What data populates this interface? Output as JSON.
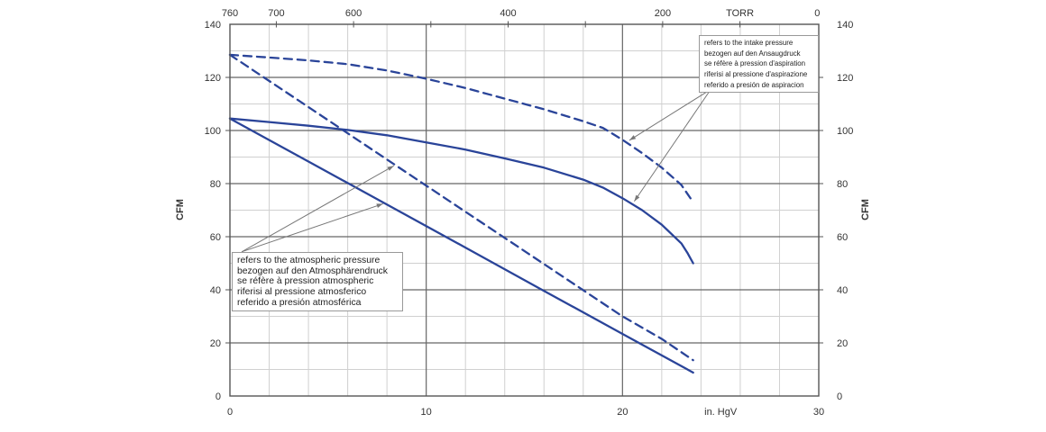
{
  "chart_data": {
    "type": "line",
    "x_axis_bottom": {
      "label": "in. HgV",
      "range": [
        0,
        30
      ],
      "labeled_ticks": [
        0,
        10,
        20,
        30
      ],
      "unit_label_at": 25
    },
    "x_axis_top": {
      "label": "TORR",
      "labeled_ticks": [
        760,
        700,
        600,
        400,
        200,
        0
      ],
      "minor_ticks": [
        500,
        300,
        100
      ],
      "conversion": "torr = 760 - 25.4 * inHgV",
      "unit_label_at_torr": 100
    },
    "y_axis": {
      "label": "CFM",
      "range": [
        0,
        140
      ],
      "labeled_ticks": [
        0,
        20,
        40,
        60,
        80,
        100,
        120,
        140
      ],
      "minor_grid_step": 10,
      "major_grid_step": 20
    },
    "x_grid": {
      "minor_step": 2,
      "major_lines": [
        10,
        20
      ]
    },
    "colors": {
      "curve": "#2a4499",
      "grid_minor": "#d0d0d0",
      "grid_major": "#666666",
      "frame": "#555555",
      "leader": "#777777",
      "text": "#333333"
    },
    "series": [
      {
        "name": "displacement-atmospheric-solid",
        "style": "solid",
        "reference": "atmospheric pressure",
        "points": [
          [
            0,
            104.5
          ],
          [
            4,
            88.3
          ],
          [
            8,
            72.1
          ],
          [
            12,
            55.9
          ],
          [
            16,
            39.6
          ],
          [
            20,
            23.4
          ],
          [
            23.6,
            8.8
          ]
        ]
      },
      {
        "name": "displacement-atmospheric-dashed",
        "style": "dashed",
        "reference": "atmospheric pressure",
        "points": [
          [
            0,
            128.5
          ],
          [
            4,
            108.8
          ],
          [
            8,
            89.1
          ],
          [
            12,
            69.4
          ],
          [
            16,
            49.7
          ],
          [
            20,
            30
          ],
          [
            22,
            21.5
          ],
          [
            23.6,
            13.5
          ]
        ]
      },
      {
        "name": "displacement-intake-solid",
        "style": "solid",
        "reference": "intake pressure",
        "points": [
          [
            0,
            104.5
          ],
          [
            2,
            103.2
          ],
          [
            4,
            101.8
          ],
          [
            6,
            100.2
          ],
          [
            8,
            98.2
          ],
          [
            10,
            95.5
          ],
          [
            12,
            92.8
          ],
          [
            14,
            89.5
          ],
          [
            16,
            86
          ],
          [
            18,
            81.5
          ],
          [
            19,
            78.5
          ],
          [
            20,
            74.5
          ],
          [
            21,
            70
          ],
          [
            22,
            64.5
          ],
          [
            23,
            57.5
          ],
          [
            23.3,
            54
          ],
          [
            23.6,
            50
          ]
        ]
      },
      {
        "name": "displacement-intake-dashed",
        "style": "dashed",
        "reference": "intake pressure",
        "points": [
          [
            0,
            128.5
          ],
          [
            2,
            127.5
          ],
          [
            4,
            126.4
          ],
          [
            6,
            125
          ],
          [
            8,
            122.6
          ],
          [
            10,
            119.5
          ],
          [
            12,
            116
          ],
          [
            14,
            112
          ],
          [
            16,
            108
          ],
          [
            18,
            103.5
          ],
          [
            19,
            101
          ],
          [
            20,
            96.5
          ],
          [
            21,
            91.5
          ],
          [
            22,
            86
          ],
          [
            23,
            79.5
          ],
          [
            23.6,
            73
          ]
        ]
      }
    ],
    "leaders": [
      {
        "for": "intake",
        "from": [
          24.5,
          115.5
        ],
        "tips": [
          [
            20.35,
            96.3
          ],
          [
            20.6,
            73.3
          ]
        ]
      },
      {
        "for": "atmospheric",
        "from": [
          0.6,
          54.3
        ],
        "tips": [
          [
            8.35,
            86.7
          ],
          [
            7.8,
            72.4
          ]
        ]
      }
    ]
  },
  "annotations": {
    "intake": {
      "lines": [
        "refers to the intake pressure",
        "bezogen auf den Ansaugdruck",
        "se réfère à pression d'aspiration",
        "riferisi al pressione d'aspirazione",
        "referido a presión de aspiracion"
      ]
    },
    "atmospheric": {
      "lines": [
        "refers to the atmospheric pressure",
        "bezogen auf den Atmosphärendruck",
        "se réfère à pression atmospheric",
        "riferisi al pressione atmosferico",
        "referido a presión atmosférica"
      ]
    }
  }
}
